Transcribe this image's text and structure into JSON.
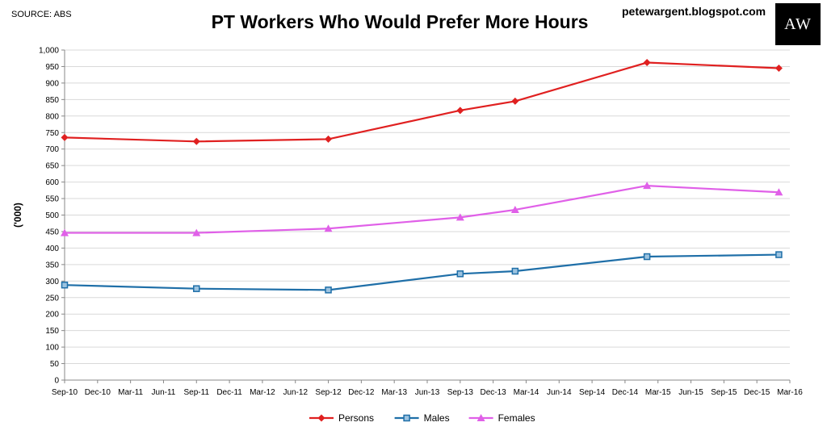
{
  "header": {
    "source": "SOURCE: ABS",
    "title": "PT Workers Who Would Prefer More Hours",
    "blog": "petewargent.blogspot.com",
    "logo": "AW"
  },
  "chart_data": {
    "type": "line",
    "title": "PT Workers Who Would Prefer More Hours",
    "ylabel": "('000)",
    "xlabel": "",
    "ylim": [
      0,
      1000
    ],
    "ytick_step": 50,
    "grid": true,
    "legend_position": "bottom",
    "categories": [
      "Sep-10",
      "Dec-10",
      "Mar-11",
      "Jun-11",
      "Sep-11",
      "Dec-11",
      "Mar-12",
      "Jun-12",
      "Sep-12",
      "Dec-12",
      "Mar-13",
      "Jun-13",
      "Sep-13",
      "Dec-13",
      "Mar-14",
      "Jun-14",
      "Sep-14",
      "Dec-14",
      "Mar-15",
      "Jun-15",
      "Sep-15",
      "Dec-15",
      "Mar-16"
    ],
    "series": [
      {
        "name": "Persons",
        "color": "#e02020",
        "marker": "diamond",
        "points": [
          {
            "x": "Sep-10",
            "y": 735
          },
          {
            "x": "Sep-11",
            "y": 723
          },
          {
            "x": "Sep-12",
            "y": 730
          },
          {
            "x": "Sep-13",
            "y": 817
          },
          {
            "x": "Feb-14",
            "y": 845
          },
          {
            "x": "Feb-15",
            "y": 962
          },
          {
            "x": "Feb-16",
            "y": 945
          }
        ]
      },
      {
        "name": "Males",
        "color": "#1f6fa8",
        "marker": "square",
        "points": [
          {
            "x": "Sep-10",
            "y": 288
          },
          {
            "x": "Sep-11",
            "y": 277
          },
          {
            "x": "Sep-12",
            "y": 273
          },
          {
            "x": "Sep-13",
            "y": 322
          },
          {
            "x": "Feb-14",
            "y": 330
          },
          {
            "x": "Feb-15",
            "y": 374
          },
          {
            "x": "Feb-16",
            "y": 380
          }
        ]
      },
      {
        "name": "Females",
        "color": "#e060e8",
        "marker": "triangle",
        "points": [
          {
            "x": "Sep-10",
            "y": 446
          },
          {
            "x": "Sep-11",
            "y": 446
          },
          {
            "x": "Sep-12",
            "y": 459
          },
          {
            "x": "Sep-13",
            "y": 493
          },
          {
            "x": "Feb-14",
            "y": 516
          },
          {
            "x": "Feb-15",
            "y": 589
          },
          {
            "x": "Feb-16",
            "y": 569
          }
        ]
      }
    ]
  }
}
